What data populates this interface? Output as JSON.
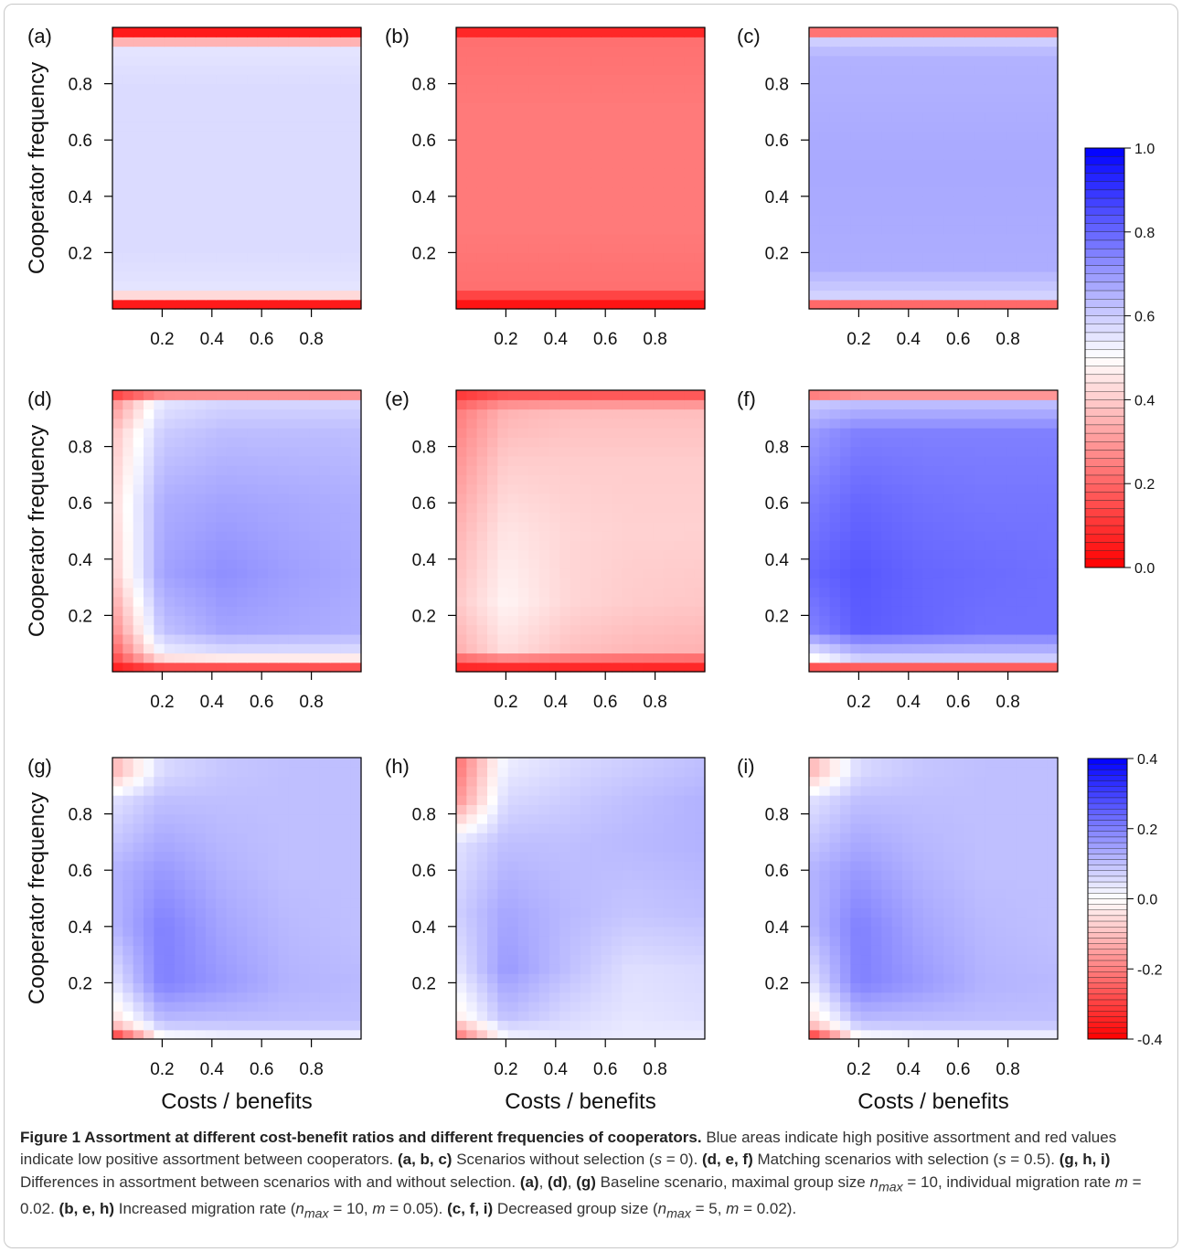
{
  "chart_data": [
    {
      "type": "heatmap",
      "panel": "(a)",
      "ylabel": "Cooperator frequency",
      "xlabel": "",
      "xticks": [
        0.2,
        0.4,
        0.6,
        0.8
      ],
      "yticks": [
        0.2,
        0.4,
        0.6,
        0.8
      ],
      "xlim": [
        0,
        1
      ],
      "ylim": [
        0,
        1
      ],
      "value_range": [
        0,
        1
      ],
      "rows": [
        {
          "y": 0.02,
          "values": [
            0.05,
            0.05,
            0.05,
            0.05,
            0.05
          ]
        },
        {
          "y": 0.06,
          "values": [
            0.55,
            0.55,
            0.55,
            0.55,
            0.55
          ]
        },
        {
          "y": 0.2,
          "values": [
            0.57,
            0.57,
            0.57,
            0.57,
            0.57
          ]
        },
        {
          "y": 0.5,
          "values": [
            0.57,
            0.57,
            0.57,
            0.57,
            0.57
          ]
        },
        {
          "y": 0.8,
          "values": [
            0.57,
            0.57,
            0.57,
            0.57,
            0.57
          ]
        },
        {
          "y": 0.93,
          "values": [
            0.55,
            0.55,
            0.55,
            0.55,
            0.55
          ]
        },
        {
          "y": 0.98,
          "values": [
            0.05,
            0.05,
            0.05,
            0.05,
            0.05
          ]
        }
      ]
    },
    {
      "type": "heatmap",
      "panel": "(b)",
      "ylabel": "",
      "xlabel": "",
      "xticks": [
        0.2,
        0.4,
        0.6,
        0.8
      ],
      "yticks": [
        0.2,
        0.4,
        0.6,
        0.8
      ],
      "xlim": [
        0,
        1
      ],
      "ylim": [
        0,
        1
      ],
      "value_range": [
        0,
        1
      ],
      "rows": [
        {
          "y": 0.01,
          "values": [
            0.02,
            0.02,
            0.02,
            0.02,
            0.02
          ]
        },
        {
          "y": 0.08,
          "values": [
            0.22,
            0.22,
            0.22,
            0.22,
            0.22
          ]
        },
        {
          "y": 0.3,
          "values": [
            0.24,
            0.24,
            0.24,
            0.24,
            0.24
          ]
        },
        {
          "y": 0.7,
          "values": [
            0.24,
            0.24,
            0.24,
            0.24,
            0.24
          ]
        },
        {
          "y": 0.95,
          "values": [
            0.22,
            0.22,
            0.22,
            0.22,
            0.22
          ]
        },
        {
          "y": 0.99,
          "values": [
            0.05,
            0.05,
            0.05,
            0.05,
            0.05
          ]
        }
      ]
    },
    {
      "type": "heatmap",
      "panel": "(c)",
      "ylabel": "",
      "xlabel": "",
      "xticks": [
        0.2,
        0.4,
        0.6,
        0.8
      ],
      "yticks": [
        0.2,
        0.4,
        0.6,
        0.8
      ],
      "xlim": [
        0,
        1
      ],
      "ylim": [
        0,
        1
      ],
      "value_range": [
        0,
        1
      ],
      "rows": [
        {
          "y": 0.01,
          "values": [
            0.1,
            0.1,
            0.1,
            0.1,
            0.1
          ]
        },
        {
          "y": 0.04,
          "values": [
            0.58,
            0.58,
            0.58,
            0.58,
            0.58
          ]
        },
        {
          "y": 0.15,
          "values": [
            0.66,
            0.66,
            0.66,
            0.66,
            0.66
          ]
        },
        {
          "y": 0.5,
          "values": [
            0.67,
            0.67,
            0.67,
            0.67,
            0.67
          ]
        },
        {
          "y": 0.9,
          "values": [
            0.65,
            0.65,
            0.65,
            0.65,
            0.65
          ]
        },
        {
          "y": 0.965,
          "values": [
            0.58,
            0.58,
            0.58,
            0.58,
            0.58
          ]
        },
        {
          "y": 0.99,
          "values": [
            0.1,
            0.1,
            0.1,
            0.1,
            0.1
          ]
        }
      ]
    },
    {
      "type": "heatmap",
      "panel": "(d)",
      "ylabel": "Cooperator frequency",
      "xlabel": "",
      "xticks": [
        0.2,
        0.4,
        0.6,
        0.8
      ],
      "yticks": [
        0.2,
        0.4,
        0.6,
        0.8
      ],
      "xlim": [
        0,
        1
      ],
      "ylim": [
        0,
        1
      ],
      "value_range": [
        0,
        1
      ],
      "rows": [
        {
          "y": 0.01,
          "values": [
            0.05,
            0.1,
            0.1,
            0.1,
            0.1
          ]
        },
        {
          "y": 0.06,
          "values": [
            0.2,
            0.52,
            0.55,
            0.55,
            0.55
          ]
        },
        {
          "y": 0.15,
          "values": [
            0.3,
            0.62,
            0.68,
            0.67,
            0.66
          ]
        },
        {
          "y": 0.35,
          "values": [
            0.42,
            0.68,
            0.72,
            0.69,
            0.67
          ]
        },
        {
          "y": 0.6,
          "values": [
            0.45,
            0.66,
            0.68,
            0.67,
            0.66
          ]
        },
        {
          "y": 0.85,
          "values": [
            0.4,
            0.6,
            0.63,
            0.63,
            0.63
          ]
        },
        {
          "y": 0.96,
          "values": [
            0.3,
            0.55,
            0.58,
            0.58,
            0.58
          ]
        },
        {
          "y": 0.99,
          "values": [
            0.1,
            0.2,
            0.2,
            0.2,
            0.2
          ]
        }
      ]
    },
    {
      "type": "heatmap",
      "panel": "(e)",
      "ylabel": "",
      "xlabel": "",
      "xticks": [
        0.2,
        0.4,
        0.6,
        0.8
      ],
      "yticks": [
        0.2,
        0.4,
        0.6,
        0.8
      ],
      "xlim": [
        0,
        1
      ],
      "ylim": [
        0,
        1
      ],
      "value_range": [
        0,
        1
      ],
      "rows": [
        {
          "y": 0.01,
          "values": [
            0.05,
            0.05,
            0.05,
            0.05,
            0.05
          ]
        },
        {
          "y": 0.08,
          "values": [
            0.35,
            0.44,
            0.38,
            0.36,
            0.35
          ]
        },
        {
          "y": 0.25,
          "values": [
            0.4,
            0.48,
            0.42,
            0.4,
            0.39
          ]
        },
        {
          "y": 0.5,
          "values": [
            0.36,
            0.45,
            0.42,
            0.41,
            0.41
          ]
        },
        {
          "y": 0.75,
          "values": [
            0.3,
            0.4,
            0.4,
            0.4,
            0.4
          ]
        },
        {
          "y": 0.93,
          "values": [
            0.25,
            0.35,
            0.37,
            0.37,
            0.37
          ]
        },
        {
          "y": 0.99,
          "values": [
            0.1,
            0.15,
            0.15,
            0.15,
            0.15
          ]
        }
      ]
    },
    {
      "type": "heatmap",
      "panel": "(f)",
      "ylabel": "",
      "xlabel": "",
      "xticks": [
        0.2,
        0.4,
        0.6,
        0.8
      ],
      "yticks": [
        0.2,
        0.4,
        0.6,
        0.8
      ],
      "xlim": [
        0,
        1
      ],
      "ylim": [
        0,
        1
      ],
      "value_range": [
        0,
        1
      ],
      "rows": [
        {
          "y": 0.01,
          "values": [
            0.1,
            0.1,
            0.1,
            0.1,
            0.1
          ]
        },
        {
          "y": 0.05,
          "values": [
            0.5,
            0.6,
            0.6,
            0.6,
            0.6
          ]
        },
        {
          "y": 0.15,
          "values": [
            0.75,
            0.82,
            0.8,
            0.78,
            0.78
          ]
        },
        {
          "y": 0.35,
          "values": [
            0.8,
            0.83,
            0.8,
            0.79,
            0.78
          ]
        },
        {
          "y": 0.6,
          "values": [
            0.76,
            0.8,
            0.78,
            0.77,
            0.77
          ]
        },
        {
          "y": 0.85,
          "values": [
            0.7,
            0.75,
            0.75,
            0.75,
            0.75
          ]
        },
        {
          "y": 0.96,
          "values": [
            0.6,
            0.62,
            0.62,
            0.62,
            0.62
          ]
        },
        {
          "y": 0.99,
          "values": [
            0.15,
            0.2,
            0.2,
            0.2,
            0.2
          ]
        }
      ]
    },
    {
      "type": "heatmap",
      "panel": "(g)",
      "ylabel": "Cooperator frequency",
      "xlabel": "Costs / benefits",
      "xticks": [
        0.2,
        0.4,
        0.6,
        0.8
      ],
      "yticks": [
        0.2,
        0.4,
        0.6,
        0.8
      ],
      "xlim": [
        0,
        1
      ],
      "ylim": [
        0,
        1
      ],
      "value_range": [
        -0.4,
        0.4
      ],
      "rows": [
        {
          "y": 0.01,
          "values": [
            -0.3,
            0,
            0.02,
            0.02,
            0.02
          ]
        },
        {
          "y": 0.06,
          "values": [
            -0.05,
            0.1,
            0.1,
            0.1,
            0.1
          ]
        },
        {
          "y": 0.2,
          "values": [
            0.05,
            0.2,
            0.16,
            0.12,
            0.11
          ]
        },
        {
          "y": 0.4,
          "values": [
            0.12,
            0.2,
            0.14,
            0.11,
            0.1
          ]
        },
        {
          "y": 0.6,
          "values": [
            0.12,
            0.16,
            0.12,
            0.1,
            0.1
          ]
        },
        {
          "y": 0.85,
          "values": [
            0.05,
            0.1,
            0.1,
            0.1,
            0.1
          ]
        },
        {
          "y": 0.95,
          "values": [
            -0.1,
            0.06,
            0.09,
            0.1,
            0.1
          ]
        }
      ]
    },
    {
      "type": "heatmap",
      "panel": "(h)",
      "ylabel": "",
      "xlabel": "Costs / benefits",
      "xticks": [
        0.2,
        0.4,
        0.6,
        0.8
      ],
      "yticks": [
        0.2,
        0.4,
        0.6,
        0.8
      ],
      "xlim": [
        0,
        1
      ],
      "ylim": [
        0,
        1
      ],
      "value_range": [
        -0.4,
        0.4
      ],
      "rows": [
        {
          "y": 0.01,
          "values": [
            -0.2,
            0.02,
            0.04,
            0.03,
            0.03
          ]
        },
        {
          "y": 0.08,
          "values": [
            -0.02,
            0.1,
            0.06,
            0.04,
            0.05
          ]
        },
        {
          "y": 0.25,
          "values": [
            0.05,
            0.16,
            0.1,
            0.05,
            0.06
          ]
        },
        {
          "y": 0.45,
          "values": [
            0.08,
            0.14,
            0.11,
            0.09,
            0.1
          ]
        },
        {
          "y": 0.7,
          "values": [
            0.05,
            0.1,
            0.1,
            0.11,
            0.12
          ]
        },
        {
          "y": 0.85,
          "values": [
            -0.15,
            0.06,
            0.08,
            0.1,
            0.12
          ]
        },
        {
          "y": 0.97,
          "values": [
            -0.2,
            0.03,
            0.06,
            0.08,
            0.1
          ]
        }
      ]
    },
    {
      "type": "heatmap",
      "panel": "(i)",
      "ylabel": "",
      "xlabel": "Costs / benefits",
      "xticks": [
        0.2,
        0.4,
        0.6,
        0.8
      ],
      "yticks": [
        0.2,
        0.4,
        0.6,
        0.8
      ],
      "xlim": [
        0,
        1
      ],
      "ylim": [
        0,
        1
      ],
      "value_range": [
        -0.4,
        0.4
      ],
      "rows": [
        {
          "y": 0.01,
          "values": [
            -0.3,
            0,
            0.02,
            0.02,
            0.02
          ]
        },
        {
          "y": 0.06,
          "values": [
            -0.05,
            0.1,
            0.1,
            0.1,
            0.1
          ]
        },
        {
          "y": 0.2,
          "values": [
            0.05,
            0.2,
            0.16,
            0.12,
            0.11
          ]
        },
        {
          "y": 0.4,
          "values": [
            0.12,
            0.2,
            0.14,
            0.11,
            0.1
          ]
        },
        {
          "y": 0.6,
          "values": [
            0.12,
            0.16,
            0.12,
            0.1,
            0.1
          ]
        },
        {
          "y": 0.85,
          "values": [
            0.05,
            0.1,
            0.1,
            0.1,
            0.1
          ]
        },
        {
          "y": 0.95,
          "values": [
            -0.1,
            0.06,
            0.09,
            0.1,
            0.1
          ]
        }
      ]
    }
  ],
  "legends": [
    {
      "ticks": [
        "1.0",
        "0.8",
        "0.6",
        "0.4",
        "0.2",
        "0.0"
      ],
      "range": [
        0,
        1
      ],
      "colors": {
        "low": "#ff0000",
        "mid": "#ffffff",
        "high": "#0000ff"
      }
    },
    {
      "ticks": [
        "0.4",
        "0.2",
        "0.0",
        "-0.2",
        "-0.4"
      ],
      "range": [
        -0.4,
        0.4
      ],
      "colors": {
        "low": "#ff0000",
        "mid": "#ffffff",
        "high": "#0000ff"
      }
    }
  ],
  "caption": {
    "figure_title": "Figure 1 Assortment at different cost-benefit ratios and different frequencies of cooperators.",
    "text": [
      {
        "t": " Blue areas indicate high positive assortment and red values indicate low positive assortment between cooperators. "
      },
      {
        "t": "(a, b, c)",
        "b": true
      },
      {
        "t": " Scenarios without selection ("
      },
      {
        "t": "s",
        "i": true
      },
      {
        "t": " = 0). "
      },
      {
        "t": "(d, e, f)",
        "b": true
      },
      {
        "t": " Matching scenarios with selection ("
      },
      {
        "t": "s",
        "i": true
      },
      {
        "t": " = 0.5). "
      },
      {
        "t": "(g, h, i)",
        "b": true
      },
      {
        "t": " Differences in assortment between scenarios with and without selection. "
      },
      {
        "t": "(a)",
        "b": true
      },
      {
        "t": ", "
      },
      {
        "t": "(d)",
        "b": true
      },
      {
        "t": ", "
      },
      {
        "t": "(g)",
        "b": true
      },
      {
        "t": " Baseline scenario, maximal group size "
      },
      {
        "t": "n",
        "i": true
      },
      {
        "t": "max",
        "i": true,
        "sub": true
      },
      {
        "t": " = 10, individual migration rate "
      },
      {
        "t": "m",
        "i": true
      },
      {
        "t": " = 0.02. "
      },
      {
        "t": "(b, e, h)",
        "b": true
      },
      {
        "t": " Increased migration rate ("
      },
      {
        "t": "n",
        "i": true
      },
      {
        "t": "max",
        "i": true,
        "sub": true
      },
      {
        "t": " = 10, "
      },
      {
        "t": "m",
        "i": true
      },
      {
        "t": " = 0.05). "
      },
      {
        "t": "(c, f, i)",
        "b": true
      },
      {
        "t": " Decreased group size ("
      },
      {
        "t": "n",
        "i": true
      },
      {
        "t": "max",
        "i": true,
        "sub": true
      },
      {
        "t": " = 5, "
      },
      {
        "t": "m",
        "i": true
      },
      {
        "t": " = 0.02)."
      }
    ]
  }
}
